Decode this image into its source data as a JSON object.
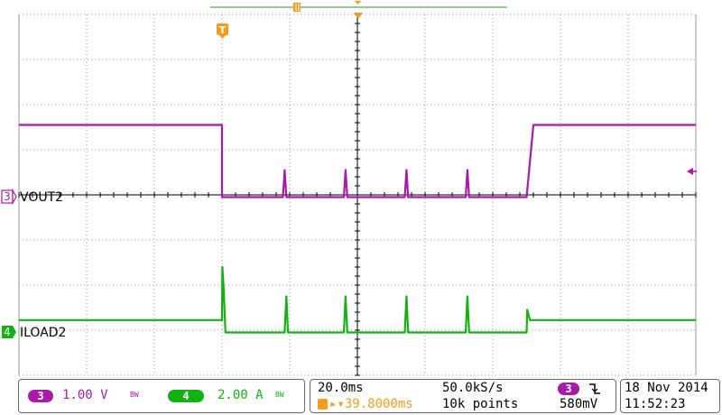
{
  "colors": {
    "ch3": "#a81aa8",
    "ch4": "#13b213",
    "trigger": "#f49a1d",
    "grid": "#9a9a9a",
    "axis": "#000000"
  },
  "markers": {
    "trigger_T": "T",
    "ch3_badge": "3",
    "ch4_badge": "4"
  },
  "channels": {
    "ch3": {
      "number": "3",
      "label": "VOUT2",
      "scale": "1.00 V",
      "bw": "BW"
    },
    "ch4": {
      "number": "4",
      "label": "ILOAD2",
      "scale": "2.00 A",
      "bw": "BW"
    }
  },
  "timebase": {
    "time_div": "20.0ms",
    "sample_rate": "50.0kS/s",
    "trigger_position": "▸▾39.8000ms",
    "record_length": "10k points",
    "trigger_channel": "3",
    "trigger_slope_icon": "falling-edge-icon",
    "trigger_level": "580mV"
  },
  "datetime": {
    "date": "18 Nov 2014",
    "time": "11:52:23"
  },
  "chart_data": {
    "type": "line",
    "title": "",
    "xlabel": "",
    "ylabel": "",
    "grid": true,
    "x_unit": "ms",
    "xlim": [
      -100,
      100
    ],
    "ylim_divisions": [
      -4,
      4
    ],
    "series": [
      {
        "name": "VOUT2",
        "unit": "V",
        "volts_per_div": 1.0,
        "x": [
          -100,
          -40,
          -40,
          -22,
          -21.5,
          -21,
          -4,
          -3.5,
          -3,
          14,
          14.5,
          15,
          32,
          32.5,
          33,
          50,
          52,
          100
        ],
        "y": [
          1.55,
          1.55,
          -0.05,
          -0.05,
          0.55,
          -0.05,
          -0.05,
          0.55,
          -0.05,
          -0.05,
          0.55,
          -0.05,
          -0.05,
          0.55,
          -0.05,
          -0.05,
          1.55,
          1.55
        ]
      },
      {
        "name": "ILOAD2",
        "unit": "A",
        "amps_per_div": 2.0,
        "x": [
          -100,
          -40,
          -39.9,
          -39.5,
          -39,
          -21.5,
          -21,
          -20.5,
          -4,
          -3.5,
          -3,
          14,
          14.5,
          15,
          32,
          32.5,
          33,
          50,
          50.2,
          51,
          100
        ],
        "y": [
          0.45,
          0.45,
          2.8,
          1.8,
          -0.1,
          -0.1,
          1.5,
          -0.1,
          -0.1,
          1.5,
          -0.1,
          -0.1,
          1.5,
          -0.1,
          -0.1,
          1.5,
          -0.1,
          -0.1,
          0.9,
          0.45,
          0.45
        ]
      }
    ]
  }
}
